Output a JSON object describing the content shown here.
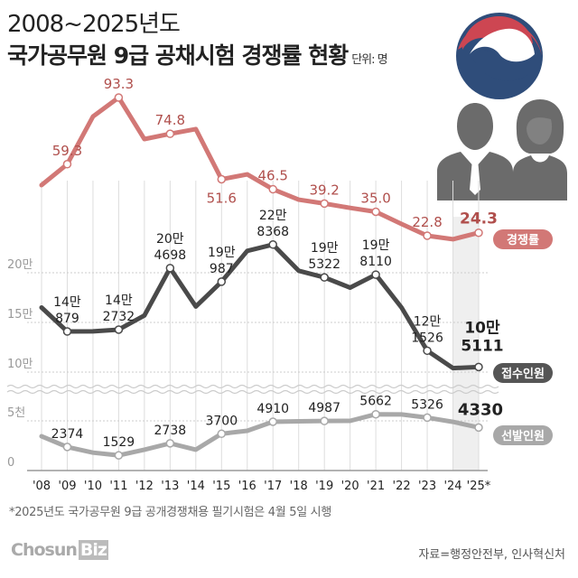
{
  "title_line1": "2008~2025년도",
  "title_line2": "국가공무원 9급 공채시험 경쟁률 현황",
  "unit": "단위: 명",
  "footnote": "*2025년도 국가공무원 9급 공개경쟁채용 필기시험은 4월 5일 시행",
  "logo": {
    "text": "Chosun",
    "accent": "Biz"
  },
  "source": "자료=행정안전부, 인사혁신처",
  "colors": {
    "ratio": "#d27876",
    "ratio_label": "#b04f4c",
    "applicants": "#4a4a4a",
    "selected": "#a8a8a8",
    "highlight": "#efefef",
    "emblem_red": "#cd4652",
    "emblem_blue": "#2f4d7a"
  },
  "icons": [
    "government-emblem-icon",
    "male-officer-icon",
    "female-officer-icon"
  ],
  "chart_data": {
    "type": "line",
    "categories": [
      "'08",
      "'09",
      "'10",
      "'11",
      "'12",
      "'13",
      "'14",
      "'15",
      "'16",
      "'17",
      "'18",
      "'19",
      "'20",
      "'21",
      "'22",
      "'23",
      "'24",
      "'25*"
    ],
    "highlight_category": "'25*",
    "y_ticks": [
      {
        "label": "20만",
        "value": 200000
      },
      {
        "label": "15만",
        "value": 150000
      },
      {
        "label": "10만",
        "value": 100000
      },
      {
        "label": "5천",
        "value": 5000
      },
      {
        "label": "0",
        "value": 0
      }
    ],
    "axis_break": "between 5천 and 10만",
    "series": [
      {
        "name": "경쟁률",
        "values": [
          48.6,
          59.3,
          83.6,
          93.3,
          72.1,
          74.8,
          77.2,
          51.6,
          54.1,
          46.5,
          41.2,
          39.2,
          37.0,
          35.0,
          28.8,
          22.8,
          21.0,
          24.3
        ],
        "labels": [
          null,
          "59.3",
          null,
          "93.3",
          null,
          "74.8",
          null,
          "51.6",
          null,
          "46.5",
          null,
          "39.2",
          null,
          "35.0",
          null,
          "22.8",
          null,
          "24.3"
        ]
      },
      {
        "name": "접수인원",
        "values": [
          165000,
          140879,
          141000,
          142732,
          157000,
          204698,
          166000,
          190987,
          222000,
          228368,
          202000,
          195322,
          185000,
          198110,
          165000,
          121526,
          104000,
          105111
        ],
        "labels": [
          null,
          [
            "14만",
            "879"
          ],
          null,
          [
            "14만",
            "2732"
          ],
          null,
          [
            "20만",
            "4698"
          ],
          null,
          [
            "19만",
            "987"
          ],
          null,
          [
            "22만",
            "8368"
          ],
          null,
          [
            "19만",
            "5322"
          ],
          null,
          [
            "19만",
            "8110"
          ],
          null,
          [
            "12만",
            "1526"
          ],
          null,
          [
            "10만",
            "5111"
          ]
        ]
      },
      {
        "name": "선발인원",
        "values": [
          3450,
          2374,
          1800,
          1529,
          2100,
          2738,
          2100,
          3700,
          4000,
          4910,
          4950,
          4987,
          5000,
          5662,
          5650,
          5326,
          4900,
          4330
        ],
        "labels": [
          null,
          "2374",
          null,
          "1529",
          null,
          "2738",
          null,
          "3700",
          null,
          "4910",
          null,
          "4987",
          null,
          "5662",
          null,
          "5326",
          null,
          "4330"
        ]
      }
    ]
  }
}
